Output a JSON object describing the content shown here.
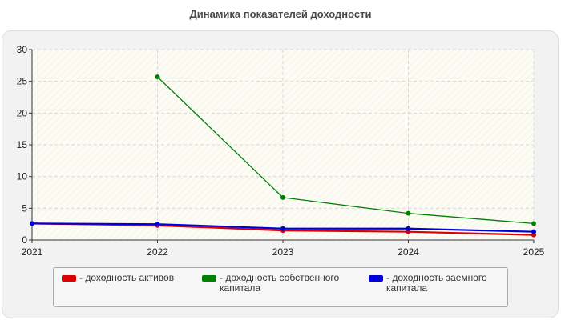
{
  "chart_data": {
    "type": "line",
    "title": "Динамика показателей доходности",
    "xlabel": "",
    "ylabel": "",
    "x": [
      "2021",
      "2022",
      "2023",
      "2024",
      "2025"
    ],
    "ylim": [
      0,
      30
    ],
    "yticks": [
      "0",
      "5",
      "10",
      "15",
      "20",
      "25",
      "30"
    ],
    "grid": true,
    "legend_position": "bottom",
    "series": [
      {
        "name": "- доходность активов",
        "color": "#dd0000",
        "values": [
          2.6,
          2.3,
          1.5,
          1.3,
          0.8
        ]
      },
      {
        "name": "- доходность собственного\nкапитала",
        "color": "#008000",
        "values": [
          null,
          25.7,
          6.7,
          4.2,
          2.6
        ]
      },
      {
        "name": "- доходность заемного\nкапитала",
        "color": "#0000dd",
        "values": [
          2.6,
          2.5,
          1.8,
          1.8,
          1.3
        ]
      }
    ]
  }
}
